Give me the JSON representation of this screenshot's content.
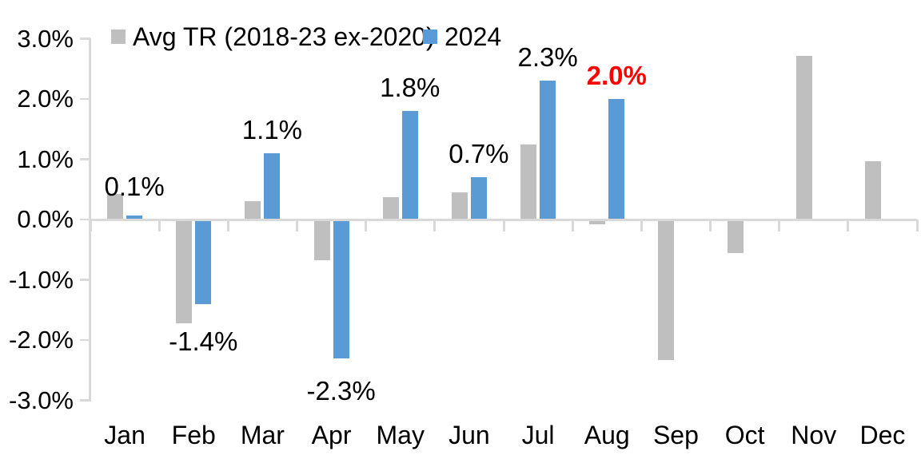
{
  "chart_data": {
    "type": "bar",
    "title": "",
    "categories": [
      "Jan",
      "Feb",
      "Mar",
      "Apr",
      "May",
      "Jun",
      "Jul",
      "Aug",
      "Sep",
      "Oct",
      "Nov",
      "Dec"
    ],
    "series": [
      {
        "name": "Avg TR (2018-23 ex-2020)",
        "color": "#BFBFBF",
        "values": [
          0.43,
          -1.72,
          0.31,
          -0.67,
          0.37,
          0.45,
          1.25,
          -0.08,
          -2.33,
          -0.55,
          2.72,
          0.97
        ]
      },
      {
        "name": "2024",
        "color": "#5B9BD5",
        "values": [
          0.06,
          -1.4,
          1.1,
          -2.3,
          1.8,
          0.7,
          2.3,
          2.0,
          null,
          null,
          null,
          null
        ]
      }
    ],
    "data_labels": [
      {
        "category": "Jan",
        "text": "0.1%",
        "color": "#000000",
        "bold": false
      },
      {
        "category": "Feb",
        "text": "-1.4%",
        "color": "#000000",
        "bold": false
      },
      {
        "category": "Mar",
        "text": "1.1%",
        "color": "#000000",
        "bold": false
      },
      {
        "category": "Apr",
        "text": "-2.3%",
        "color": "#000000",
        "bold": false
      },
      {
        "category": "May",
        "text": "1.8%",
        "color": "#000000",
        "bold": false
      },
      {
        "category": "Jun",
        "text": "0.7%",
        "color": "#000000",
        "bold": false
      },
      {
        "category": "Jul",
        "text": "2.3%",
        "color": "#000000",
        "bold": false
      },
      {
        "category": "Aug",
        "text": "2.0%",
        "color": "#FF0000",
        "bold": true
      }
    ],
    "y_tick_labels": [
      "3.0%",
      "2.0%",
      "1.0%",
      "0.0%",
      "-1.0%",
      "-2.0%",
      "-3.0%"
    ],
    "y_tick_values": [
      3,
      2,
      1,
      0,
      -1,
      -2,
      -3
    ],
    "ylim": [
      -3.0,
      3.0
    ],
    "grid": false,
    "legend_position": "top",
    "axis_color": "#D9D9D9",
    "text_color": "#000000"
  }
}
